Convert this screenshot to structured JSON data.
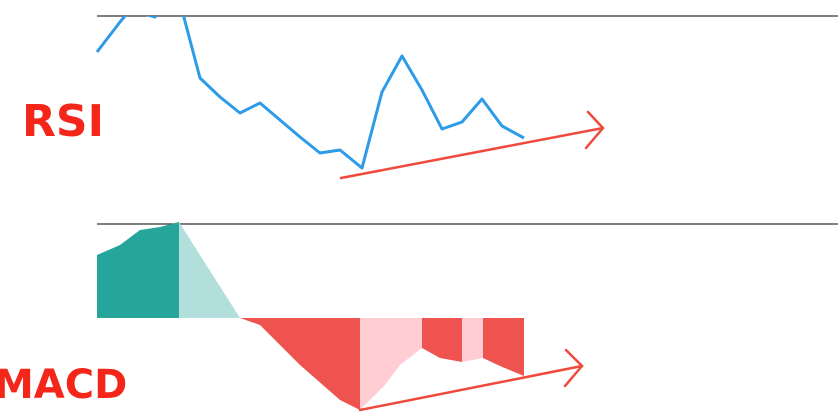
{
  "labels": {
    "rsi": "RSI",
    "macd": "MACD"
  }
}
